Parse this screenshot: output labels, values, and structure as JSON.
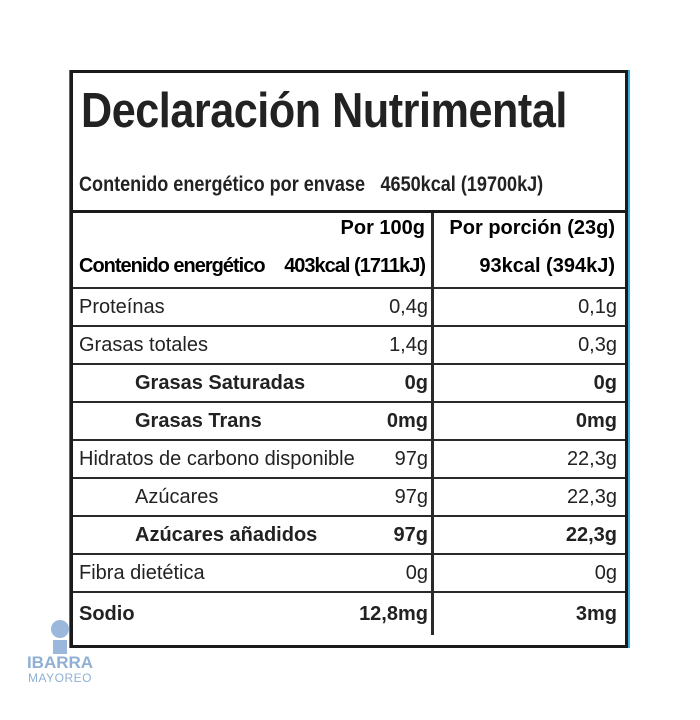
{
  "title": "Declaración Nutrimental",
  "energy_per_package": {
    "label": "Contenido energético por envase",
    "value": "4650kcal (19700kJ)"
  },
  "header": {
    "col1": "Por 100g",
    "col2": "Por porción (23g)",
    "energy_label": "Contenido energético",
    "energy_100g": "403kcal (1711kJ)",
    "energy_portion": "93kcal (394kJ)"
  },
  "rows": [
    {
      "name": "Proteínas",
      "per100": "0,4g",
      "portion": "0,1g"
    },
    {
      "name": "Grasas totales",
      "per100": "1,4g",
      "portion": "0,3g"
    },
    {
      "name": "Grasas Saturadas",
      "per100": "0g",
      "portion": "0g"
    },
    {
      "name": "Grasas Trans",
      "per100": "0mg",
      "portion": "0mg"
    },
    {
      "name": "Hidratos de carbono disponible",
      "per100": "97g",
      "portion": "22,3g"
    },
    {
      "name": "Azúcares",
      "per100": "97g",
      "portion": "22,3g"
    },
    {
      "name": "Azúcares añadidos",
      "per100": "97g",
      "portion": "22,3g"
    },
    {
      "name": "Fibra dietética",
      "per100": "0g",
      "portion": "0g"
    },
    {
      "name": "Sodio",
      "per100": "12,8mg",
      "portion": "3mg"
    }
  ],
  "watermark": {
    "line1": "IBARRA",
    "line2": "MAYOREO"
  }
}
